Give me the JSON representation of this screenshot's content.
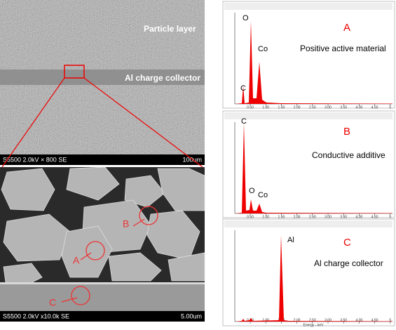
{
  "sem_top": {
    "label_layer": "Particle layer",
    "label_collector": "Al charge collector",
    "info": "S5500 2.0kV × 800 SE",
    "scale": "100um"
  },
  "sem_bottom": {
    "info": "S5500 2.0kV x10.0k SE",
    "scale": "5.00um",
    "markers": [
      "A",
      "B",
      "C"
    ]
  },
  "spectra": [
    {
      "letter": "A",
      "caption": "Positive active material",
      "peaks": [
        "O",
        "Co",
        "C"
      ]
    },
    {
      "letter": "B",
      "caption": "Conductive additive",
      "peaks": [
        "C",
        "O",
        "Co"
      ]
    },
    {
      "letter": "C",
      "caption": "Al charge collector",
      "peaks": [
        "Al"
      ]
    }
  ],
  "x_ticks": [
    "0.50",
    "1.00",
    "1.50",
    "2.00",
    "2.50",
    "3.00",
    "3.50",
    "4.00",
    "4.50",
    "5"
  ],
  "x_axis_label": "Energy - keV"
}
